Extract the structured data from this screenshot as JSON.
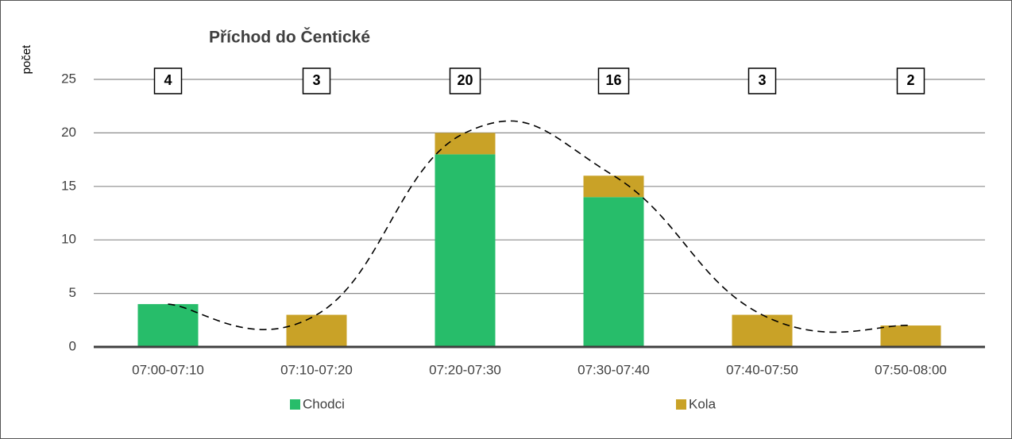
{
  "chart_data": {
    "type": "stacked_bar",
    "title": "Příchod do Čentické",
    "y_label": "počet",
    "categories": [
      "07:00-07:10",
      "07:10-07:20",
      "07:20-07:30",
      "07:30-07:40",
      "07:40-07:50",
      "07:50-08:00"
    ],
    "series": [
      {
        "name": "Chodci",
        "color": "#27bd6a",
        "values": [
          4,
          0,
          18,
          14,
          0,
          0
        ]
      },
      {
        "name": "Kola",
        "color": "#c9a227",
        "values": [
          0,
          3,
          2,
          2,
          3,
          2
        ]
      }
    ],
    "totals": [
      4,
      3,
      20,
      16,
      3,
      2
    ],
    "ylim": [
      0,
      25
    ],
    "yticks": [
      0,
      5,
      10,
      15,
      20,
      25
    ],
    "grid": true,
    "legend": "bottom"
  }
}
